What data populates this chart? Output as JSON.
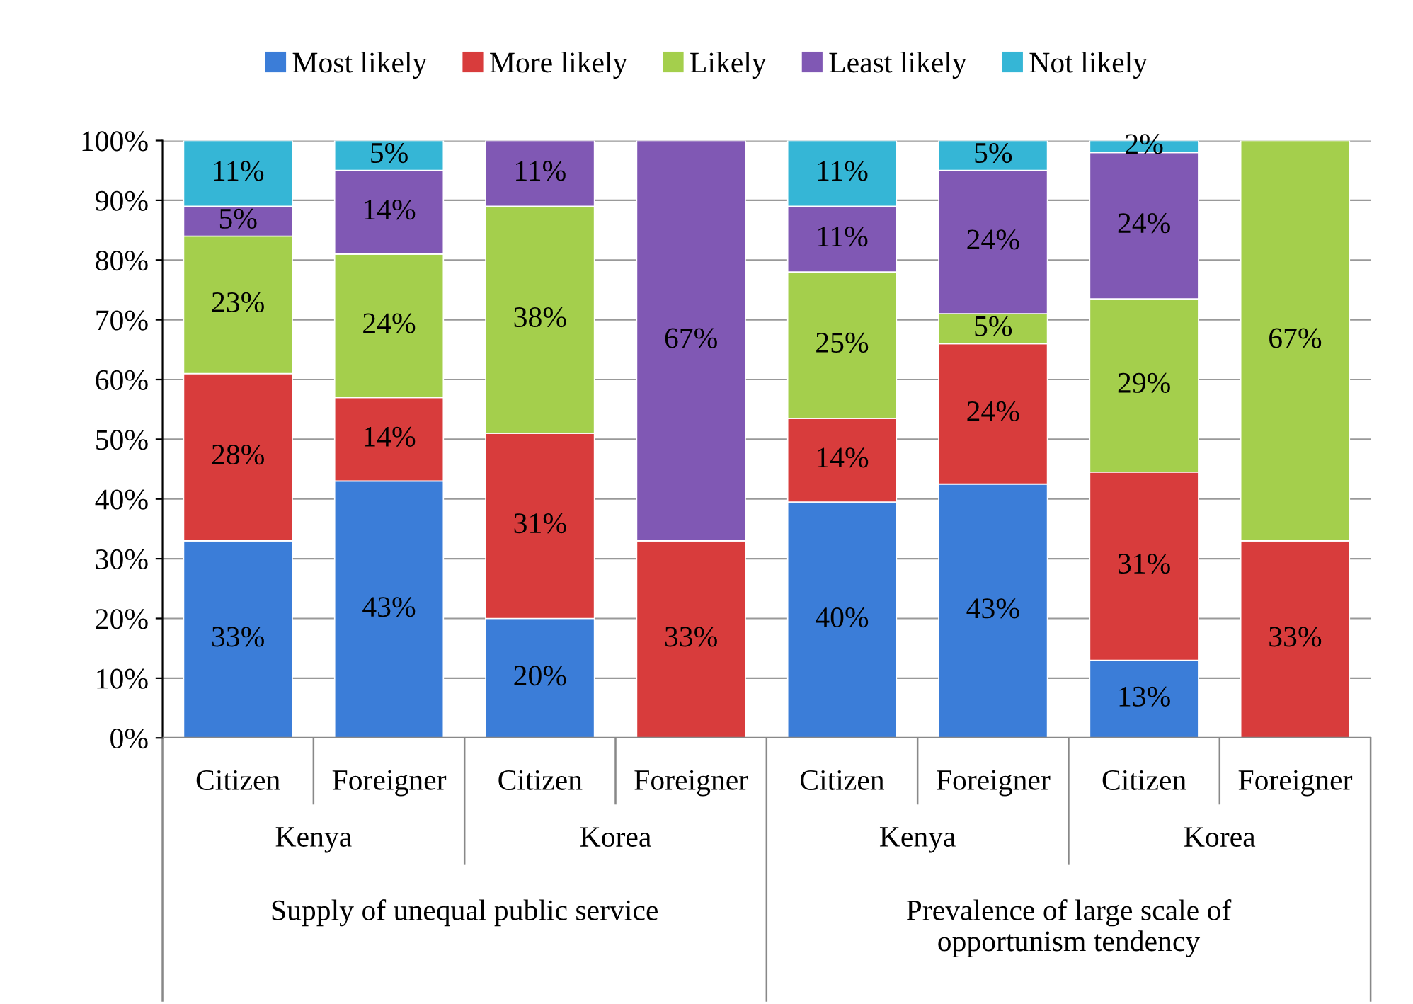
{
  "chart_data": {
    "type": "bar",
    "stacked": true,
    "categories": [
      "Citizen",
      "Foreigner",
      "Citizen",
      "Foreigner",
      "Citizen",
      "Foreigner",
      "Citizen",
      "Foreigner"
    ],
    "series": [
      {
        "name": "Most likely",
        "color": "#3b7dd8",
        "values": [
          33,
          43,
          20,
          0,
          39.5,
          42.5,
          13,
          0
        ],
        "value_labels": [
          "33%",
          "43%",
          "20%",
          null,
          "40%",
          "43%",
          "13%",
          null
        ]
      },
      {
        "name": "More likely",
        "color": "#d83c3c",
        "values": [
          28,
          14,
          31,
          33,
          14,
          23.5,
          31.5,
          33
        ],
        "value_labels": [
          "28%",
          "14%",
          "31%",
          "33%",
          "14%",
          "24%",
          "31%",
          "33%"
        ]
      },
      {
        "name": "Likely",
        "color": "#a4cf4c",
        "values": [
          23,
          24,
          38,
          0,
          24.5,
          5,
          29,
          67
        ],
        "value_labels": [
          "23%",
          "24%",
          "38%",
          null,
          "25%",
          "5%",
          "29%",
          "67%"
        ]
      },
      {
        "name": "Least likely",
        "color": "#8058b4",
        "values": [
          5,
          14,
          11,
          67,
          11,
          24,
          24.5,
          0
        ],
        "value_labels": [
          "5%",
          "14%",
          "11%",
          "67%",
          "11%",
          "24%",
          "24%",
          null
        ]
      },
      {
        "name": "Not likely",
        "color": "#35b6d6",
        "values": [
          11,
          5,
          0,
          0,
          11,
          5,
          2,
          0
        ],
        "value_labels": [
          "11%",
          "5%",
          null,
          null,
          "11%",
          "5%",
          "2%",
          null
        ]
      }
    ],
    "ylim": [
      0,
      100
    ],
    "yticks": [
      {
        "value": 0,
        "label": "0%"
      },
      {
        "value": 10,
        "label": "10%"
      },
      {
        "value": 20,
        "label": "20%"
      },
      {
        "value": 30,
        "label": "30%"
      },
      {
        "value": 40,
        "label": "40%"
      },
      {
        "value": 50,
        "label": "50%"
      },
      {
        "value": 60,
        "label": "60%"
      },
      {
        "value": 70,
        "label": "70%"
      },
      {
        "value": 80,
        "label": "80%"
      },
      {
        "value": 90,
        "label": "90%"
      },
      {
        "value": 100,
        "label": "100%"
      }
    ],
    "grid": "y",
    "legend": "top",
    "annotations": [
      "Kenya",
      "Korea",
      "Kenya",
      "Korea",
      "Supply of unequal public service",
      "Prevalence of large scale of\nopportunism tendency"
    ]
  }
}
